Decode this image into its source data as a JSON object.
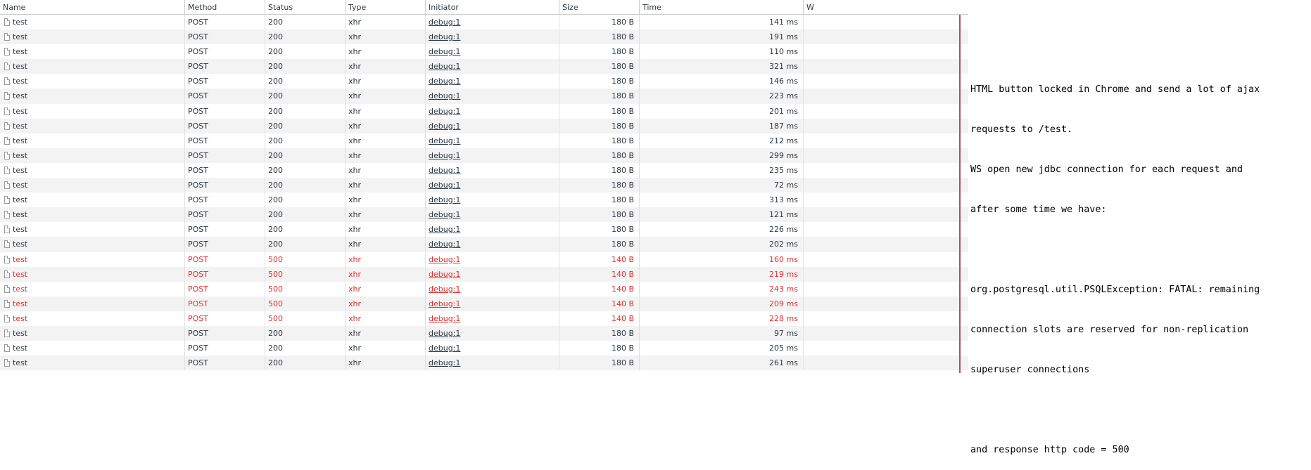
{
  "columns": [
    "Name",
    "Method",
    "Status",
    "Type",
    "Initiator",
    "Size",
    "Time",
    "W"
  ],
  "rows": [
    {
      "name": "test",
      "method": "POST",
      "status": "200",
      "type": "xhr",
      "initiator": "debug:1",
      "size": "180 B",
      "time": "141 ms",
      "error": false
    },
    {
      "name": "test",
      "method": "POST",
      "status": "200",
      "type": "xhr",
      "initiator": "debug:1",
      "size": "180 B",
      "time": "191 ms",
      "error": false
    },
    {
      "name": "test",
      "method": "POST",
      "status": "200",
      "type": "xhr",
      "initiator": "debug:1",
      "size": "180 B",
      "time": "110 ms",
      "error": false
    },
    {
      "name": "test",
      "method": "POST",
      "status": "200",
      "type": "xhr",
      "initiator": "debug:1",
      "size": "180 B",
      "time": "321 ms",
      "error": false
    },
    {
      "name": "test",
      "method": "POST",
      "status": "200",
      "type": "xhr",
      "initiator": "debug:1",
      "size": "180 B",
      "time": "146 ms",
      "error": false
    },
    {
      "name": "test",
      "method": "POST",
      "status": "200",
      "type": "xhr",
      "initiator": "debug:1",
      "size": "180 B",
      "time": "223 ms",
      "error": false
    },
    {
      "name": "test",
      "method": "POST",
      "status": "200",
      "type": "xhr",
      "initiator": "debug:1",
      "size": "180 B",
      "time": "201 ms",
      "error": false
    },
    {
      "name": "test",
      "method": "POST",
      "status": "200",
      "type": "xhr",
      "initiator": "debug:1",
      "size": "180 B",
      "time": "187 ms",
      "error": false
    },
    {
      "name": "test",
      "method": "POST",
      "status": "200",
      "type": "xhr",
      "initiator": "debug:1",
      "size": "180 B",
      "time": "212 ms",
      "error": false
    },
    {
      "name": "test",
      "method": "POST",
      "status": "200",
      "type": "xhr",
      "initiator": "debug:1",
      "size": "180 B",
      "time": "299 ms",
      "error": false
    },
    {
      "name": "test",
      "method": "POST",
      "status": "200",
      "type": "xhr",
      "initiator": "debug:1",
      "size": "180 B",
      "time": "235 ms",
      "error": false
    },
    {
      "name": "test",
      "method": "POST",
      "status": "200",
      "type": "xhr",
      "initiator": "debug:1",
      "size": "180 B",
      "time": "72 ms",
      "error": false
    },
    {
      "name": "test",
      "method": "POST",
      "status": "200",
      "type": "xhr",
      "initiator": "debug:1",
      "size": "180 B",
      "time": "313 ms",
      "error": false
    },
    {
      "name": "test",
      "method": "POST",
      "status": "200",
      "type": "xhr",
      "initiator": "debug:1",
      "size": "180 B",
      "time": "121 ms",
      "error": false
    },
    {
      "name": "test",
      "method": "POST",
      "status": "200",
      "type": "xhr",
      "initiator": "debug:1",
      "size": "180 B",
      "time": "226 ms",
      "error": false
    },
    {
      "name": "test",
      "method": "POST",
      "status": "200",
      "type": "xhr",
      "initiator": "debug:1",
      "size": "180 B",
      "time": "202 ms",
      "error": false
    },
    {
      "name": "test",
      "method": "POST",
      "status": "500",
      "type": "xhr",
      "initiator": "debug:1",
      "size": "140 B",
      "time": "160 ms",
      "error": true
    },
    {
      "name": "test",
      "method": "POST",
      "status": "500",
      "type": "xhr",
      "initiator": "debug:1",
      "size": "140 B",
      "time": "219 ms",
      "error": true
    },
    {
      "name": "test",
      "method": "POST",
      "status": "500",
      "type": "xhr",
      "initiator": "debug:1",
      "size": "140 B",
      "time": "243 ms",
      "error": true
    },
    {
      "name": "test",
      "method": "POST",
      "status": "500",
      "type": "xhr",
      "initiator": "debug:1",
      "size": "140 B",
      "time": "209 ms",
      "error": true
    },
    {
      "name": "test",
      "method": "POST",
      "status": "500",
      "type": "xhr",
      "initiator": "debug:1",
      "size": "140 B",
      "time": "228 ms",
      "error": true
    },
    {
      "name": "test",
      "method": "POST",
      "status": "200",
      "type": "xhr",
      "initiator": "debug:1",
      "size": "180 B",
      "time": "97 ms",
      "error": false
    },
    {
      "name": "test",
      "method": "POST",
      "status": "200",
      "type": "xhr",
      "initiator": "debug:1",
      "size": "180 B",
      "time": "205 ms",
      "error": false
    },
    {
      "name": "test",
      "method": "POST",
      "status": "200",
      "type": "xhr",
      "initiator": "debug:1",
      "size": "180 B",
      "time": "261 ms",
      "error": false
    }
  ],
  "colors": {
    "error": "#e32e2e",
    "divider": "#b1505a",
    "stripe": "#f3f3f3"
  },
  "note": {
    "line1": "HTML button locked in Chrome and send a lot of ajax",
    "line2": "requests to /test.",
    "line3": "WS open new jdbc connection for each request and",
    "line4": "after some time we have:",
    "line5": "org.postgresql.util.PSQLException: FATAL: remaining",
    "line6": "connection slots are reserved for non-replication",
    "line7": "superuser connections",
    "line8": "and response http code = 500"
  }
}
